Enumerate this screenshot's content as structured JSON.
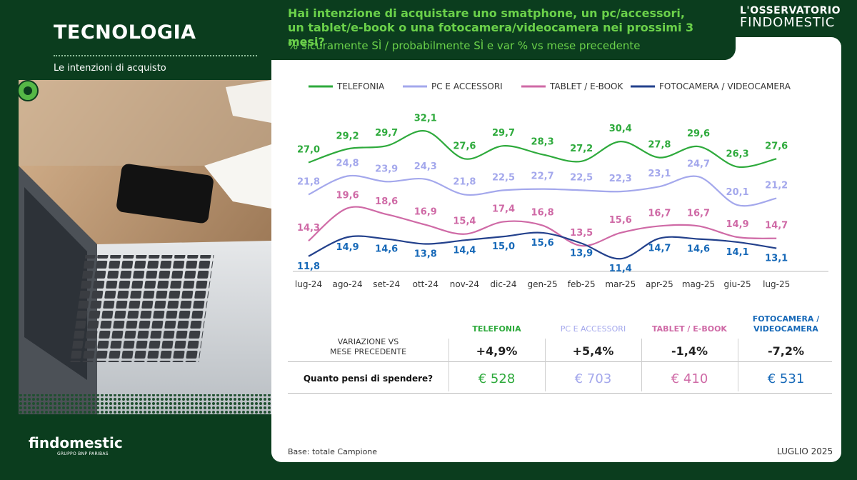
{
  "section": {
    "title": "TECNOLOGIA",
    "subtitle": "Le intenzioni di acquisto"
  },
  "header": {
    "question": "Hai intenzione di acquistare uno smatphone, un pc/accessori, un tablet/e-book o una fotocamera/videocamera nei prossimi 3 mesi?",
    "question_line1": "Hai intenzione di acquistare uno smatphone, un pc/accessori,",
    "question_line2": "un tablet/e-book o una fotocamera/videocamera nei prossimi 3 mesi?",
    "measure": "% sicuramente SÌ / probabilmente SÌ e var % vs mese precedente",
    "brand_line1": "L'OSSERVATORIO",
    "brand_line2": "FINDOMESTIC"
  },
  "logo": {
    "name": "findomestic",
    "tagline": "GRUPPO BNP PARIBAS"
  },
  "chart_data": {
    "type": "line",
    "categories": [
      "lug-24",
      "ago-24",
      "set-24",
      "ott-24",
      "nov-24",
      "dic-24",
      "gen-25",
      "feb-25",
      "mar-25",
      "apr-25",
      "mag-25",
      "giu-25",
      "lug-25"
    ],
    "series": [
      {
        "name": "TELEFONIA",
        "color": "#2eaa3c",
        "values": [
          27.0,
          29.2,
          29.7,
          32.1,
          27.6,
          29.7,
          28.3,
          27.2,
          30.4,
          27.8,
          29.6,
          26.3,
          27.6
        ]
      },
      {
        "name": "PC E ACCESSORI",
        "color": "#a4a8ec",
        "values": [
          21.8,
          24.8,
          23.9,
          24.3,
          21.8,
          22.5,
          22.7,
          22.5,
          22.3,
          23.1,
          24.7,
          20.1,
          21.2
        ]
      },
      {
        "name": "TABLET / E-BOOK",
        "color": "#cf6aa6",
        "values": [
          14.3,
          19.6,
          18.6,
          16.9,
          15.4,
          17.4,
          16.8,
          13.5,
          15.6,
          16.7,
          16.7,
          14.9,
          14.7
        ]
      },
      {
        "name": "FOTOCAMERA / VIDEOCAMERA",
        "color": "#23418c",
        "values": [
          11.8,
          14.9,
          14.6,
          13.8,
          14.4,
          15.0,
          15.6,
          13.9,
          11.4,
          14.7,
          14.6,
          14.1,
          13.1
        ]
      }
    ],
    "label_colors": [
      "#2eaa3c",
      "#a4a8ec",
      "#cf6aa6",
      "#1769b8"
    ],
    "legend_position": "top"
  },
  "table": {
    "headers": [
      "TELEFONIA",
      "PC E ACCESSORI",
      "TABLET / E-BOOK",
      "FOTOCAMERA /",
      "VIDEOCAMERA"
    ],
    "header_colors": [
      "#2eaa3c",
      "#a4a8ec",
      "#cf6aa6",
      "#1769b8"
    ],
    "row1_label_a": "VARIAZIONE VS",
    "row1_label_b": "MESE PRECEDENTE",
    "row1_values": [
      "+4,9%",
      "+5,4%",
      "-1,4%",
      "-7,2%"
    ],
    "row2_label": "Quanto pensi di spendere?",
    "row2_values": [
      "€ 528",
      "€ 703",
      "€ 410",
      "€ 531"
    ]
  },
  "footer": {
    "base": "Base: totale Campione",
    "date": "LUGLIO 2025"
  }
}
